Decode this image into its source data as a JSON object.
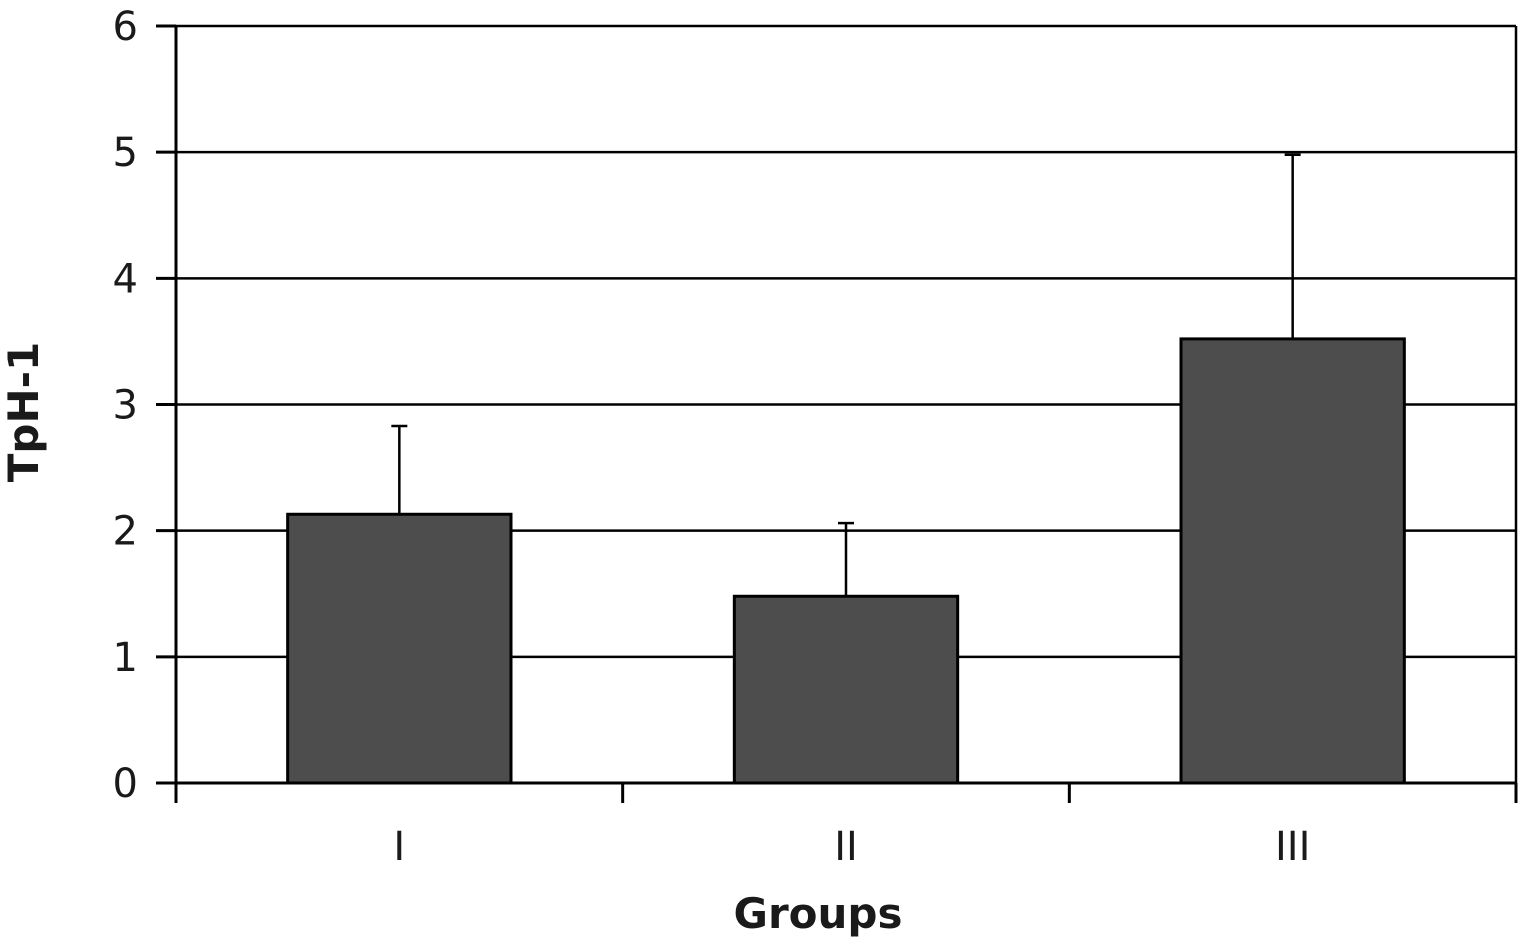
{
  "chart_data": {
    "type": "bar",
    "categories": [
      "I",
      "II",
      "III"
    ],
    "values": [
      2.13,
      1.48,
      3.52
    ],
    "error_upper": [
      2.83,
      2.06,
      4.98
    ],
    "xlabel": "Groups",
    "ylabel": "TpH-1",
    "ylim": [
      0,
      6
    ],
    "yticks": [
      0,
      1,
      2,
      3,
      4,
      5,
      6
    ],
    "grid": true,
    "colors": {
      "bar": "#4d4d4d",
      "outline": "#000000"
    }
  }
}
